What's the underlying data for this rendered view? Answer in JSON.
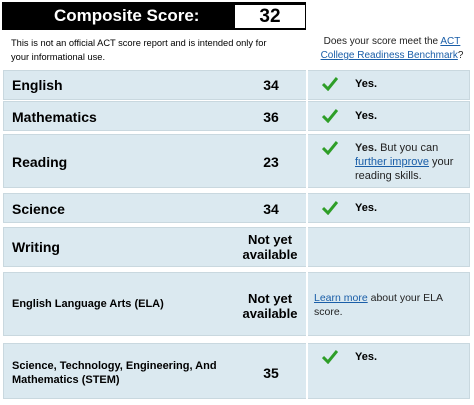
{
  "header": {
    "title": "Composite Score:",
    "composite_score": "32"
  },
  "note": "This is not an official ACT score report and is intended only for your informational use.",
  "benchmark_question": {
    "prefix": "Does your score meet the ",
    "link": "ACT College Readiness Benchmark",
    "suffix": "?"
  },
  "rows": [
    {
      "subject": "English",
      "score": "34",
      "yes": "Yes."
    },
    {
      "subject": "Mathematics",
      "score": "36",
      "yes": "Yes."
    },
    {
      "subject": "Reading",
      "score": "23",
      "yes": "Yes.",
      "pre": " But you can ",
      "link": "further improve",
      "post": " your reading skills."
    },
    {
      "subject": "Science",
      "score": "34",
      "yes": "Yes."
    },
    {
      "subject": "Writing",
      "score_line1": "Not yet",
      "score_line2": "available"
    },
    {
      "subject": "English Language Arts (ELA)",
      "score_line1": "Not yet",
      "score_line2": "available",
      "link": "Learn more",
      "post": " about your ELA score."
    },
    {
      "subject_line1": "Science, Technology, Engineering, And",
      "subject_line2": "Mathematics (STEM)",
      "score": "35",
      "yes": "Yes."
    }
  ],
  "colors": {
    "row_bg": "#dbe9f0",
    "check_green": "#2e9e28",
    "link": "#1a5ea8"
  }
}
